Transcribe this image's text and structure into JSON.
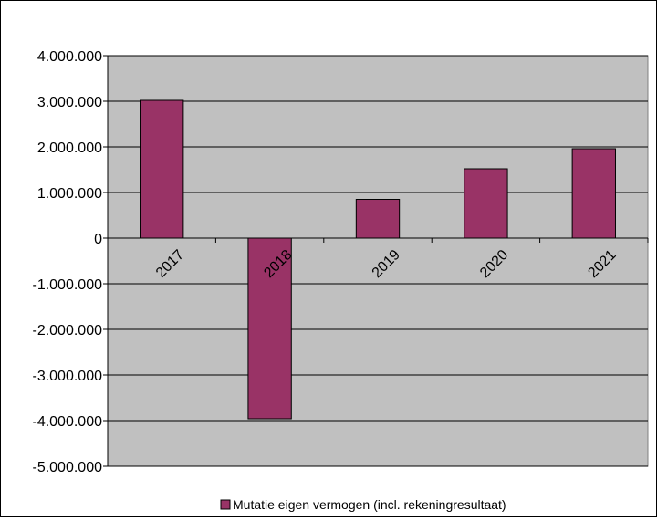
{
  "chart_data": {
    "type": "bar",
    "title": "",
    "xlabel": "",
    "ylabel": "",
    "categories": [
      "2017",
      "2018",
      "2019",
      "2020",
      "2021"
    ],
    "series": [
      {
        "name": "Mutatie eigen vermogen (incl. rekeningresultaat)",
        "values": [
          3020000,
          -3960000,
          850000,
          1520000,
          1960000
        ],
        "color": "#993366"
      }
    ],
    "ylim": [
      -5000000,
      4000000
    ],
    "yticks": [
      4000000,
      3000000,
      2000000,
      1000000,
      0,
      -1000000,
      -2000000,
      -3000000,
      -4000000,
      -5000000
    ],
    "ytick_labels": [
      "4.000.000",
      "3.000.000",
      "2.000.000",
      "1.000.000",
      "0",
      "-1.000.000",
      "-2.000.000",
      "-3.000.000",
      "-4.000.000",
      "-5.000.000"
    ],
    "grid": true,
    "plot_background": "#c0c0c0",
    "legend_position": "bottom"
  }
}
